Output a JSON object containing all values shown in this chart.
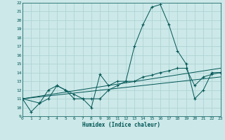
{
  "xlabel": "Humidex (Indice chaleur)",
  "bg_color": "#cce8e8",
  "grid_color": "#aad0d0",
  "line_color": "#005555",
  "xlim": [
    0,
    23
  ],
  "ylim": [
    9,
    22
  ],
  "yticks": [
    9,
    10,
    11,
    12,
    13,
    14,
    15,
    16,
    17,
    18,
    19,
    20,
    21,
    22
  ],
  "xticks": [
    0,
    1,
    2,
    3,
    4,
    5,
    6,
    7,
    8,
    9,
    10,
    11,
    12,
    13,
    14,
    15,
    16,
    17,
    18,
    19,
    20,
    21,
    22,
    23
  ],
  "series": [
    {
      "x": [
        0,
        1,
        2,
        3,
        4,
        5,
        6,
        7,
        8,
        9,
        10,
        11,
        12,
        13,
        14,
        15,
        16,
        17,
        18,
        19,
        20,
        21,
        22,
        23
      ],
      "y": [
        11.0,
        9.5,
        10.5,
        12.0,
        12.5,
        12.0,
        11.0,
        11.0,
        10.0,
        13.8,
        12.5,
        13.0,
        13.0,
        17.0,
        19.5,
        21.5,
        21.8,
        19.5,
        16.5,
        15.0,
        11.0,
        12.0,
        14.0,
        14.0
      ],
      "marker": true
    },
    {
      "x": [
        0,
        2,
        3,
        4,
        5,
        6,
        7,
        8,
        9,
        10,
        11,
        12,
        13,
        14,
        15,
        16,
        17,
        18,
        19,
        20,
        21,
        22,
        23
      ],
      "y": [
        11.0,
        10.5,
        11.0,
        12.5,
        12.0,
        11.5,
        11.0,
        11.0,
        11.0,
        12.0,
        12.5,
        13.0,
        13.0,
        13.5,
        13.7,
        14.0,
        14.2,
        14.5,
        14.5,
        12.5,
        13.5,
        13.8,
        14.0
      ],
      "marker": true
    },
    {
      "x": [
        0,
        23
      ],
      "y": [
        11.0,
        14.5
      ],
      "marker": false
    },
    {
      "x": [
        0,
        23
      ],
      "y": [
        11.0,
        13.5
      ],
      "marker": false
    }
  ]
}
